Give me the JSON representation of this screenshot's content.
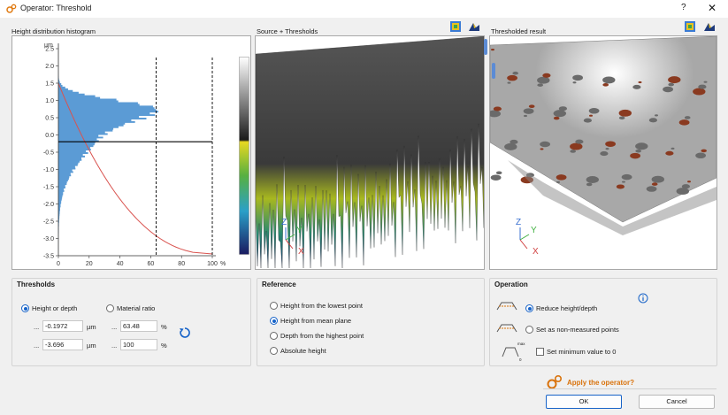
{
  "window": {
    "title": "Operator: Threshold",
    "help_label": "?",
    "close_label": "✕"
  },
  "panels": {
    "histogram_title": "Height distribution histogram",
    "source_title": "Source + Thresholds",
    "result_title": "Thresholded result"
  },
  "histogram": {
    "y_unit": "µm",
    "y_ticks": [
      "2.5",
      "2.0",
      "1.5",
      "1.0",
      "0.5",
      "0.0",
      "-0.5",
      "-1.0",
      "-1.5",
      "-2.0",
      "-2.5",
      "-3.0",
      "-3.5"
    ],
    "x_ticks": [
      "0",
      "20",
      "40",
      "60",
      "80",
      "100"
    ],
    "x_unit": "%",
    "threshold_height": -0.1972,
    "material_ratio_line": 63.48,
    "material_ratio_line2": 100
  },
  "axes3d": {
    "z": "Z",
    "y": "Y",
    "x": "X"
  },
  "thresholds": {
    "title": "Thresholds",
    "mode_height": "Height or depth",
    "mode_ratio": "Material ratio",
    "dots": "...",
    "upper_height": "-0.1972",
    "lower_height": "-3.696",
    "height_unit": "µm",
    "upper_ratio": "63.48",
    "lower_ratio": "100",
    "ratio_unit": "%"
  },
  "reference": {
    "title": "Reference",
    "options": [
      "Height from the lowest point",
      "Height from mean plane",
      "Depth from the highest point",
      "Absolute height"
    ],
    "selected_index": 1
  },
  "operation": {
    "title": "Operation",
    "reduce": "Reduce height/depth",
    "non_measured": "Set as non-measured points",
    "set_min": "Set minimum value to 0",
    "max_label": "max",
    "zero_label": "0",
    "info": "i"
  },
  "footer": {
    "prompt": "Apply the operator?",
    "ok": "OK",
    "cancel": "Cancel"
  },
  "colors": {
    "accent": "#1763c8",
    "apply": "#d9730d",
    "histogram": "#5b9bd5",
    "curve": "#d9534f"
  }
}
